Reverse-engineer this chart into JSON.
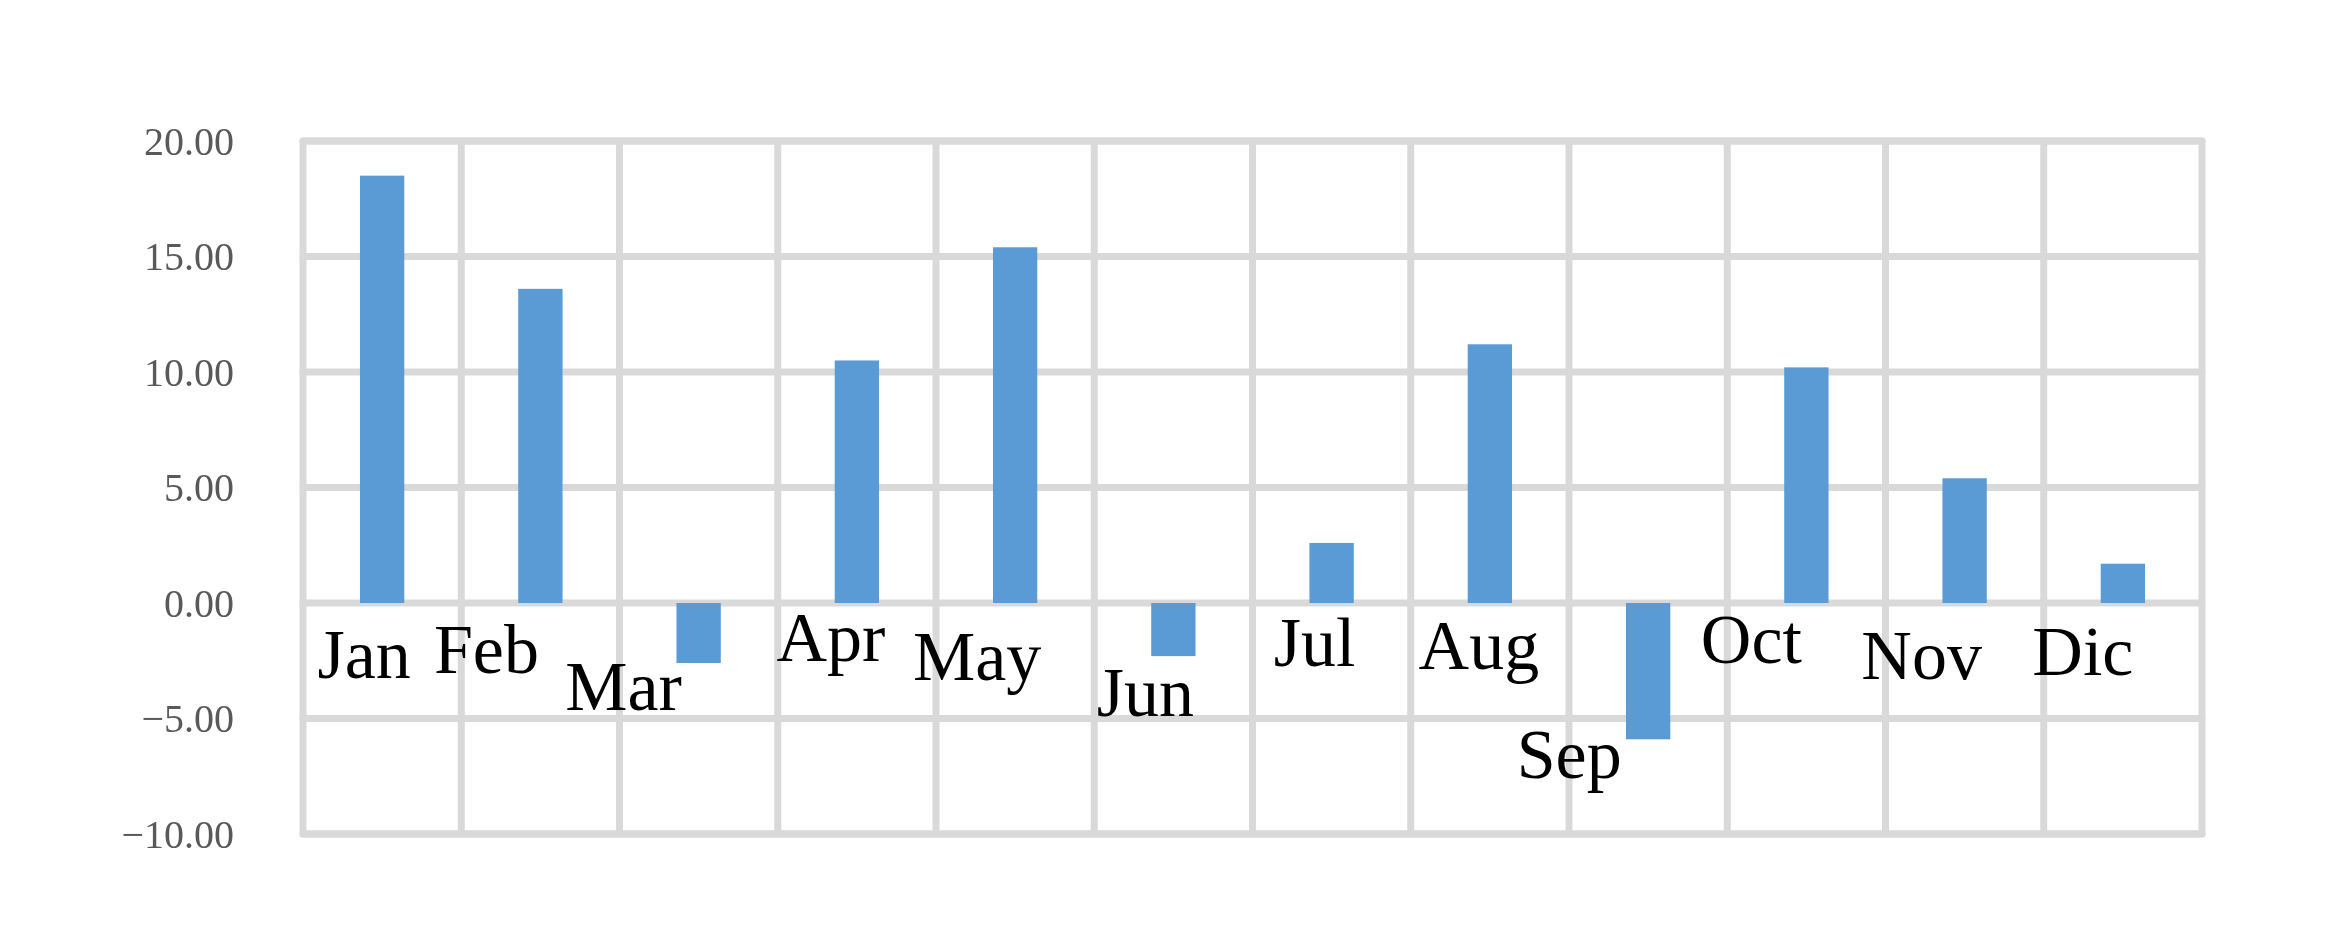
{
  "chart_data": {
    "type": "bar",
    "categories": [
      "Jan",
      "Feb",
      "Mar",
      "Apr",
      "May",
      "Jun",
      "Jul",
      "Aug",
      "Sep",
      "Oct",
      "Nov",
      "Dic"
    ],
    "values": [
      18.5,
      13.6,
      -2.6,
      10.5,
      15.4,
      -2.3,
      2.6,
      11.2,
      -5.9,
      10.2,
      5.4,
      1.7
    ],
    "color": "#5b9bd5",
    "ylim": [
      -10,
      20
    ],
    "yticks": [
      {
        "value": -10,
        "label": "−10.00"
      },
      {
        "value": -5,
        "label": "−5.00"
      },
      {
        "value": 0,
        "label": "0.00"
      },
      {
        "value": 5,
        "label": "5.00"
      },
      {
        "value": 10,
        "label": "10.00"
      },
      {
        "value": 15,
        "label": "15.00"
      },
      {
        "value": 20,
        "label": "20.00"
      }
    ],
    "grid": true
  }
}
